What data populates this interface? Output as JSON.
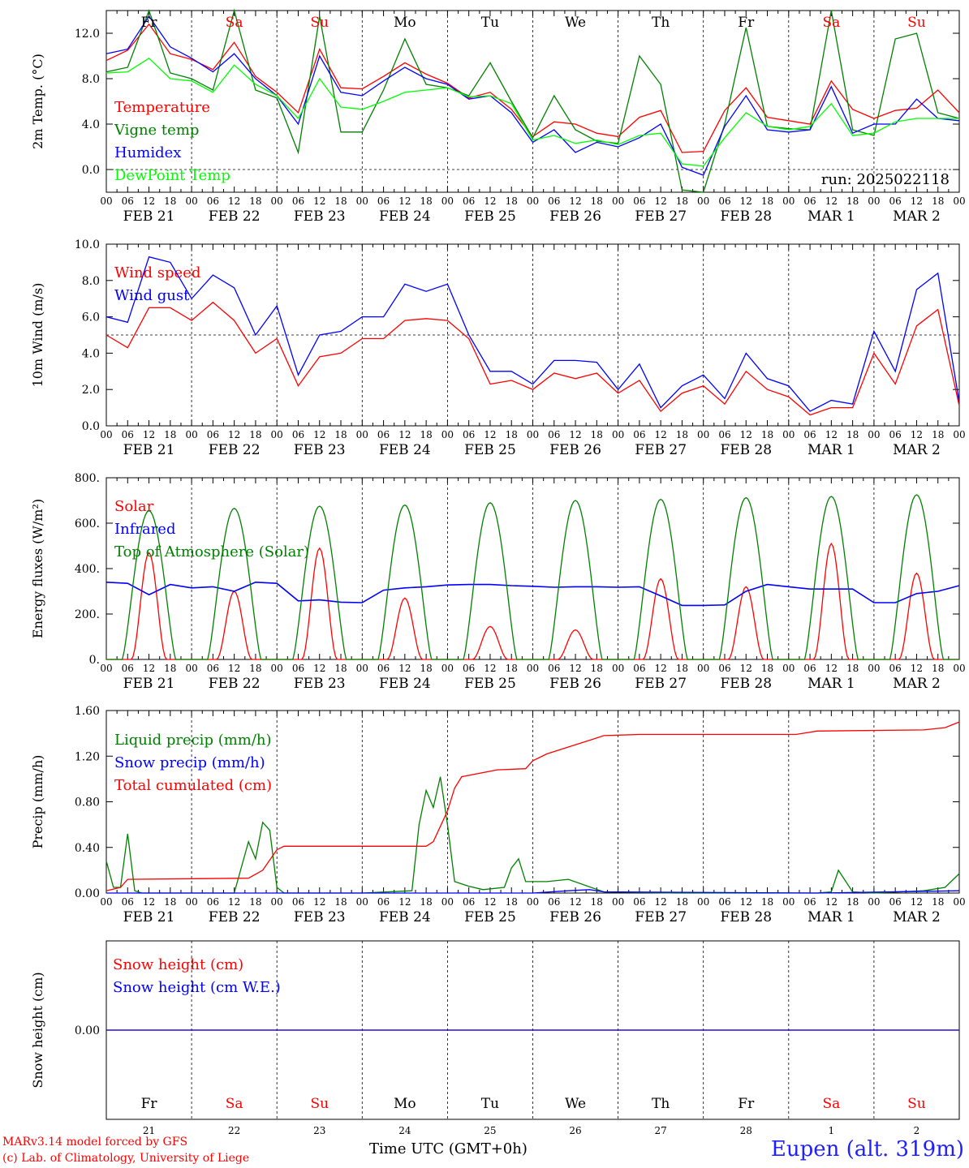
{
  "run_label": "run: 2025022118",
  "station": "Eupen (alt. 319m)",
  "credits": [
    "MARv3.14 model forced by GFS",
    "(c) Lab. of Climatology, University of Liege"
  ],
  "xlabel": "Time UTC (GMT+0h)",
  "hour_ticks": [
    "00",
    "06",
    "12",
    "18"
  ],
  "final_tick": "00",
  "date_labels": [
    "FEB 21",
    "FEB 22",
    "FEB 23",
    "FEB 24",
    "FEB 25",
    "FEB 26",
    "FEB 27",
    "FEB 28",
    "MAR  1",
    "MAR  2"
  ],
  "day_names": [
    {
      "name": "Fr",
      "color": "#000000"
    },
    {
      "name": "Sa",
      "color": "#ff0000"
    },
    {
      "name": "Su",
      "color": "#ff0000"
    },
    {
      "name": "Mo",
      "color": "#000000"
    },
    {
      "name": "Tu",
      "color": "#000000"
    },
    {
      "name": "We",
      "color": "#000000"
    },
    {
      "name": "Th",
      "color": "#000000"
    },
    {
      "name": "Fr",
      "color": "#000000"
    },
    {
      "name": "Sa",
      "color": "#ff0000"
    },
    {
      "name": "Su",
      "color": "#ff0000"
    }
  ],
  "day_numbers": [
    "21",
    "22",
    "23",
    "24",
    "25",
    "26",
    "27",
    "28",
    "1",
    "2"
  ],
  "chart_data": [
    {
      "type": "line",
      "ylabel": "2m Temp. (°C)",
      "ylim": [
        -2,
        14
      ],
      "yticks": [
        "0.0",
        "4.0",
        "8.0",
        "12.0"
      ],
      "yticks_values": [
        0,
        4,
        8,
        12
      ],
      "xlim_hours": [
        0,
        240
      ],
      "dashed_h": 0,
      "grid": "dashed vertical lines at 00 UTC",
      "series": [
        {
          "name": "Temperature",
          "color": "#ff0000",
          "x": [
            0,
            6,
            12,
            18,
            24,
            30,
            36,
            42,
            48,
            54,
            60,
            66,
            72,
            78,
            84,
            90,
            96,
            102,
            108,
            114,
            120,
            126,
            132,
            138,
            144,
            150,
            156,
            162,
            168,
            174,
            180,
            186,
            192,
            198,
            204,
            210,
            216,
            222,
            228,
            234,
            240
          ],
          "values": [
            9.6,
            10.5,
            12.8,
            10.2,
            9.7,
            8.8,
            11.2,
            8.2,
            6.8,
            5.0,
            10.6,
            7.2,
            7.1,
            8.2,
            9.4,
            8.4,
            7.6,
            6.3,
            6.8,
            5.3,
            2.9,
            4.2,
            4.0,
            3.2,
            2.9,
            4.6,
            5.2,
            1.5,
            1.6,
            5.2,
            7.2,
            4.6,
            4.3,
            4.0,
            7.8,
            5.3,
            4.5,
            5.2,
            5.4,
            7.0,
            5.0
          ]
        },
        {
          "name": "Vigne temp",
          "color": "#008000",
          "x": [
            0,
            6,
            12,
            18,
            24,
            30,
            36,
            42,
            48,
            54,
            60,
            66,
            72,
            78,
            84,
            90,
            96,
            102,
            108,
            114,
            120,
            126,
            132,
            138,
            144,
            150,
            156,
            162,
            168,
            174,
            180,
            186,
            192,
            198,
            204,
            210,
            216,
            222,
            228,
            234,
            240
          ],
          "values": [
            8.6,
            9.0,
            14.0,
            8.5,
            8.0,
            7.0,
            14.0,
            7.0,
            6.3,
            1.5,
            13.5,
            3.3,
            3.3,
            7.0,
            11.5,
            7.5,
            7.2,
            6.5,
            9.4,
            6.0,
            2.8,
            6.5,
            3.5,
            2.5,
            2.3,
            10.0,
            7.5,
            -1.8,
            -2.0,
            4.0,
            12.5,
            3.8,
            3.6,
            3.5,
            14.0,
            3.5,
            3.0,
            11.5,
            12.0,
            5.0,
            4.5
          ]
        },
        {
          "name": "Humidex",
          "color": "#0000ff",
          "x": [
            0,
            6,
            12,
            18,
            24,
            30,
            36,
            42,
            48,
            54,
            60,
            66,
            72,
            78,
            84,
            90,
            96,
            102,
            108,
            114,
            120,
            126,
            132,
            138,
            144,
            150,
            156,
            162,
            168,
            174,
            180,
            186,
            192,
            198,
            204,
            210,
            216,
            222,
            228,
            234,
            240
          ],
          "values": [
            10.2,
            10.6,
            13.5,
            10.8,
            9.8,
            8.6,
            10.2,
            8.0,
            6.5,
            4.0,
            10.0,
            6.8,
            6.5,
            7.8,
            9.0,
            8.0,
            7.5,
            6.2,
            6.5,
            5.0,
            2.4,
            3.5,
            1.5,
            2.4,
            2.0,
            2.8,
            4.0,
            0.2,
            -0.5,
            3.8,
            6.5,
            3.5,
            3.3,
            3.5,
            7.3,
            3.2,
            4.0,
            4.0,
            6.2,
            4.5,
            4.3
          ]
        },
        {
          "name": "DewPoint Temp",
          "color": "#00ff00",
          "x": [
            0,
            6,
            12,
            18,
            24,
            30,
            36,
            42,
            48,
            54,
            60,
            66,
            72,
            78,
            84,
            90,
            96,
            102,
            108,
            114,
            120,
            126,
            132,
            138,
            144,
            150,
            156,
            162,
            168,
            174,
            180,
            186,
            192,
            198,
            204,
            210,
            216,
            222,
            228,
            234,
            240
          ],
          "values": [
            8.5,
            8.6,
            9.8,
            8.0,
            7.8,
            6.8,
            9.2,
            7.5,
            6.5,
            4.5,
            8.0,
            5.5,
            5.3,
            6.0,
            6.8,
            7.0,
            7.2,
            6.4,
            6.5,
            5.8,
            2.6,
            3.0,
            2.3,
            2.6,
            2.2,
            3.0,
            3.2,
            0.5,
            0.3,
            2.8,
            5.0,
            3.8,
            3.5,
            3.8,
            5.8,
            3.0,
            3.2,
            4.2,
            4.5,
            4.5,
            4.5
          ]
        }
      ]
    },
    {
      "type": "line",
      "ylabel": "10m Wind (m/s)",
      "ylim": [
        0,
        10
      ],
      "yticks": [
        "0.0",
        "2.0",
        "4.0",
        "6.0",
        "8.0",
        "10.0"
      ],
      "yticks_values": [
        0,
        2,
        4,
        6,
        8,
        10
      ],
      "xlim_hours": [
        0,
        240
      ],
      "dashed_h": 5,
      "series": [
        {
          "name": "Wind speed",
          "color": "#ff0000",
          "x": [
            0,
            6,
            12,
            18,
            24,
            30,
            36,
            42,
            48,
            54,
            60,
            66,
            72,
            78,
            84,
            90,
            96,
            102,
            108,
            114,
            120,
            126,
            132,
            138,
            144,
            150,
            156,
            162,
            168,
            174,
            180,
            186,
            192,
            198,
            204,
            210,
            216,
            222,
            228,
            234,
            240
          ],
          "values": [
            5.0,
            4.3,
            6.5,
            6.5,
            5.8,
            6.8,
            5.8,
            4.0,
            4.8,
            2.2,
            3.8,
            4.0,
            4.8,
            4.8,
            5.8,
            5.9,
            5.8,
            4.8,
            2.3,
            2.5,
            2.0,
            2.9,
            2.6,
            2.9,
            1.8,
            2.5,
            0.8,
            1.8,
            2.2,
            1.2,
            3.0,
            2.0,
            1.6,
            0.6,
            1.0,
            1.0,
            4.0,
            2.3,
            5.5,
            6.4,
            1.1
          ]
        },
        {
          "name": "Wind gust",
          "color": "#0000ff",
          "x": [
            0,
            6,
            12,
            18,
            24,
            30,
            36,
            42,
            48,
            54,
            60,
            66,
            72,
            78,
            84,
            90,
            96,
            102,
            108,
            114,
            120,
            126,
            132,
            138,
            144,
            150,
            156,
            162,
            168,
            174,
            180,
            186,
            192,
            198,
            204,
            210,
            216,
            222,
            228,
            234,
            240
          ],
          "values": [
            6.0,
            5.7,
            9.3,
            9.0,
            7.0,
            8.3,
            7.6,
            5.0,
            6.6,
            2.8,
            5.0,
            5.2,
            6.0,
            6.0,
            7.8,
            7.4,
            7.8,
            5.0,
            3.0,
            3.0,
            2.3,
            3.6,
            3.6,
            3.5,
            2.0,
            3.4,
            1.0,
            2.2,
            2.8,
            1.5,
            4.0,
            2.6,
            2.2,
            0.8,
            1.4,
            1.2,
            5.2,
            3.0,
            7.5,
            8.4,
            1.3
          ]
        }
      ]
    },
    {
      "type": "line",
      "ylabel": "Energy fluxes (W/m²)",
      "ylim": [
        0,
        800
      ],
      "yticks": [
        "0.",
        "200.",
        "400.",
        "600.",
        "800."
      ],
      "yticks_values": [
        0,
        200,
        400,
        600,
        800
      ],
      "xlim_hours": [
        0,
        240
      ],
      "series": [
        {
          "name": "Solar",
          "color": "#ff0000",
          "daily_peaks": [
            470,
            300,
            490,
            270,
            145,
            130,
            355,
            320,
            510,
            380
          ]
        },
        {
          "name": "Infrared",
          "color": "#0000ff",
          "x": [
            0,
            6,
            12,
            18,
            24,
            30,
            36,
            42,
            48,
            54,
            60,
            66,
            72,
            78,
            84,
            90,
            96,
            102,
            108,
            114,
            120,
            126,
            132,
            138,
            144,
            150,
            156,
            162,
            168,
            174,
            180,
            186,
            192,
            198,
            204,
            210,
            216,
            222,
            228,
            234,
            240
          ],
          "values": [
            340,
            335,
            285,
            330,
            315,
            320,
            300,
            340,
            335,
            258,
            262,
            252,
            250,
            305,
            315,
            320,
            328,
            330,
            330,
            325,
            322,
            318,
            320,
            320,
            318,
            320,
            280,
            238,
            238,
            240,
            300,
            330,
            320,
            310,
            310,
            310,
            250,
            250,
            290,
            300,
            325
          ]
        },
        {
          "name": "Top of Atmosphere (Solar)",
          "color": "#008000",
          "daily_peaks": [
            655,
            665,
            675,
            680,
            690,
            700,
            705,
            712,
            718,
            725
          ]
        }
      ]
    },
    {
      "type": "line",
      "ylabel": "Precip (mm/h)",
      "ylim": [
        0,
        1.6
      ],
      "yticks": [
        "0.00",
        "0.40",
        "0.80",
        "1.20",
        "1.60"
      ],
      "yticks_values": [
        0,
        0.4,
        0.8,
        1.2,
        1.6
      ],
      "xlim_hours": [
        0,
        240
      ],
      "series": [
        {
          "name": "Liquid precip (mm/h)",
          "color": "#008000",
          "x": [
            0,
            2,
            4,
            6,
            8,
            10,
            24,
            36,
            40,
            42,
            44,
            46,
            48,
            50,
            72,
            86,
            88,
            90,
            92,
            94,
            96,
            98,
            100,
            102,
            106,
            112,
            114,
            116,
            118,
            124,
            130,
            140,
            160,
            200,
            204,
            206,
            210,
            216,
            230,
            236,
            240
          ],
          "values": [
            0.28,
            0.05,
            0.05,
            0.52,
            0.02,
            0.0,
            0.0,
            0.0,
            0.45,
            0.3,
            0.62,
            0.55,
            0.05,
            0.0,
            0.0,
            0.02,
            0.6,
            0.9,
            0.75,
            1.02,
            0.6,
            0.1,
            0.08,
            0.06,
            0.03,
            0.05,
            0.22,
            0.3,
            0.1,
            0.1,
            0.12,
            0.01,
            0.0,
            0.0,
            0.01,
            0.2,
            0.01,
            0.0,
            0.02,
            0.05,
            0.17
          ]
        },
        {
          "name": "Snow precip (mm/h)",
          "color": "#0000ff",
          "x": [
            0,
            60,
            120,
            130,
            136,
            140,
            200,
            240
          ],
          "values": [
            0.0,
            0.0,
            0.0,
            0.02,
            0.03,
            0.01,
            0.0,
            0.02
          ]
        },
        {
          "name": "Total cumulated (cm)",
          "color": "#ff0000",
          "x": [
            0,
            4,
            6,
            40,
            44,
            48,
            50,
            52,
            90,
            92,
            96,
            98,
            100,
            110,
            118,
            120,
            124,
            130,
            136,
            140,
            150,
            160,
            194,
            196,
            200,
            230,
            236,
            240
          ],
          "values": [
            0.02,
            0.05,
            0.12,
            0.13,
            0.2,
            0.38,
            0.41,
            0.41,
            0.41,
            0.45,
            0.72,
            0.92,
            1.02,
            1.08,
            1.09,
            1.16,
            1.22,
            1.28,
            1.34,
            1.38,
            1.39,
            1.39,
            1.39,
            1.4,
            1.42,
            1.43,
            1.45,
            1.5
          ]
        }
      ]
    },
    {
      "type": "line",
      "ylabel": "Snow height (cm)",
      "ylim": [
        -1,
        1
      ],
      "yticks": [
        "0.00"
      ],
      "yticks_values": [
        0
      ],
      "xlim_hours": [
        0,
        240
      ],
      "series": [
        {
          "name": "Snow height (cm)",
          "color": "#ff0000",
          "x": [
            0,
            240
          ],
          "values": [
            0,
            0
          ]
        },
        {
          "name": "Snow height (cm W.E.)",
          "color": "#0000ff",
          "x": [
            0,
            240
          ],
          "values": [
            0,
            0
          ]
        }
      ]
    }
  ]
}
